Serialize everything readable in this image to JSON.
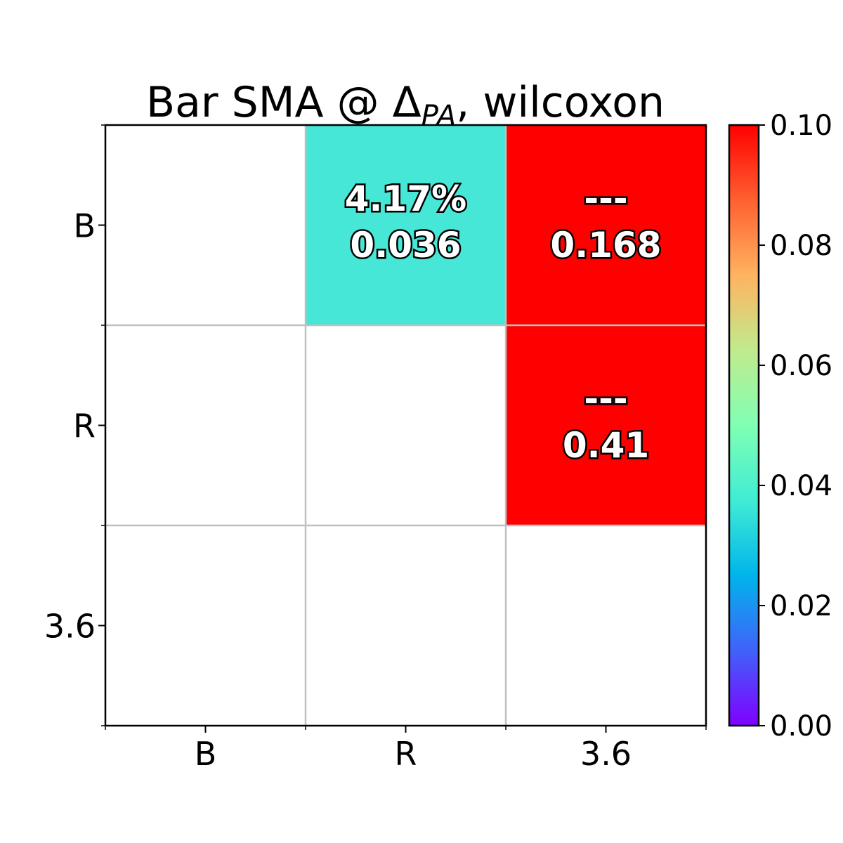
{
  "chart_data": {
    "type": "heatmap",
    "title": "Bar SMA @ Δ",
    "title_subscript": "PA",
    "title_suffix": ", wilcoxon",
    "x_categories": [
      "B",
      "R",
      "3.6"
    ],
    "y_categories": [
      "B",
      "R",
      "3.6"
    ],
    "cells": [
      {
        "row": 0,
        "col": 1,
        "value": 0.036,
        "labels": [
          "4.17%",
          "0.036"
        ]
      },
      {
        "row": 0,
        "col": 2,
        "value": 0.168,
        "labels": [
          "---",
          "0.168"
        ]
      },
      {
        "row": 1,
        "col": 2,
        "value": 0.41,
        "labels": [
          "---",
          "0.41"
        ]
      }
    ],
    "colorbar": {
      "colormap": "rainbow",
      "range": [
        0.0,
        0.1
      ],
      "tick_labels": [
        "0.00",
        "0.02",
        "0.04",
        "0.06",
        "0.08",
        "0.10"
      ],
      "tick_values": [
        0.0,
        0.02,
        0.04,
        0.06,
        0.08,
        0.1
      ]
    },
    "grid": true
  }
}
